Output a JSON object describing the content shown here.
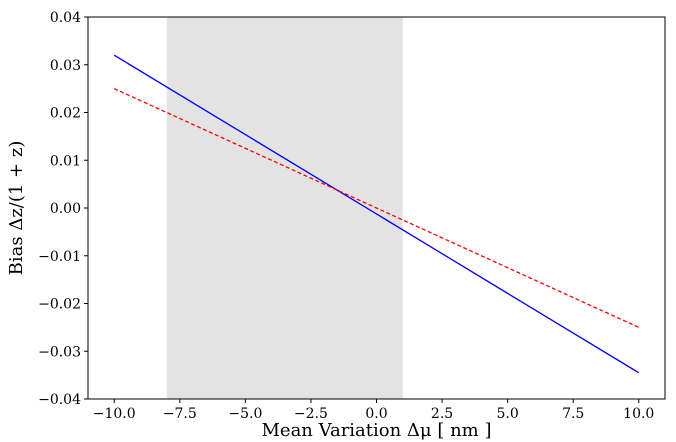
{
  "chart_data": {
    "type": "line",
    "title": "",
    "xlabel": "Mean Variation Δμ [ nm ]",
    "ylabel": "Bias Δz/(1 + z)",
    "xlim": [
      -11.0,
      11.0
    ],
    "ylim": [
      -0.04,
      0.04
    ],
    "grid": false,
    "legend": "none",
    "xticks": [
      -10.0,
      -7.5,
      -5.0,
      -2.5,
      0.0,
      2.5,
      5.0,
      7.5,
      10.0
    ],
    "xtick_labels": [
      "−10.0",
      "−7.5",
      "−5.0",
      "−2.5",
      "0.0",
      "2.5",
      "5.0",
      "7.5",
      "10.0"
    ],
    "yticks": [
      -0.04,
      -0.03,
      -0.02,
      -0.01,
      0.0,
      0.01,
      0.02,
      0.03,
      0.04
    ],
    "ytick_labels": [
      "−0.04",
      "−0.03",
      "−0.02",
      "−0.01",
      "0.00",
      "0.01",
      "0.02",
      "0.03",
      "0.04"
    ],
    "shaded_region": {
      "x": [
        -8.0,
        1.0
      ],
      "color": "#e3e3e3"
    },
    "series": [
      {
        "x": [
          -10.0,
          10.0
        ],
        "y": [
          0.032,
          -0.0345
        ],
        "color": "#0000ff",
        "style": "solid"
      },
      {
        "x": [
          -10.0,
          10.0
        ],
        "y": [
          0.025,
          -0.025
        ],
        "color": "#ff0000",
        "style": "dashed"
      }
    ]
  }
}
